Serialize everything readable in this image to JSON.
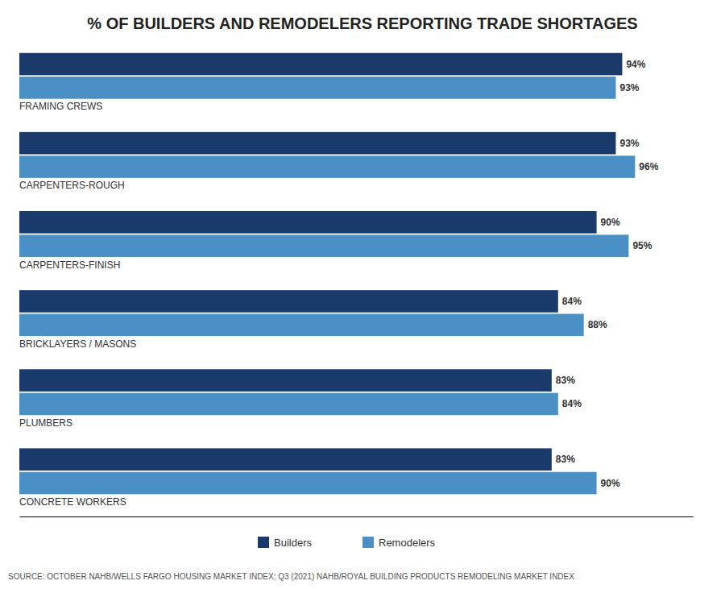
{
  "chart_data": {
    "type": "bar",
    "orientation": "horizontal",
    "title": "% OF BUILDERS AND REMODELERS REPORTING TRADE SHORTAGES",
    "annotations": [
      "SOURCE: OCTOBER NAHB/WELLS FARGO HOUSING MARKET INDEX; Q3 (2021) NAHB/ROYAL BUILDING PRODUCTS REMODELING MARKET INDEX"
    ],
    "categories": [
      "FRAMING CREWS",
      "CARPENTERS-ROUGH",
      "CARPENTERS-FINISH",
      "BRICKLAYERS / MASONS",
      "PLUMBERS",
      "CONCRETE WORKERS"
    ],
    "series": [
      {
        "name": "Builders",
        "color": "#1a3a6b",
        "values": [
          94,
          93,
          90,
          84,
          83,
          83
        ],
        "value_labels": [
          "94%",
          "93%",
          "90%",
          "84%",
          "83%",
          "83%"
        ]
      },
      {
        "name": "Remodelers",
        "color": "#4a90c4",
        "values": [
          93,
          96,
          95,
          88,
          84,
          90
        ],
        "value_labels": [
          "93%",
          "96%",
          "95%",
          "88%",
          "84%",
          "90%"
        ]
      }
    ],
    "xlim": [
      0,
      105
    ],
    "data_labels": true,
    "tick_labels": false,
    "grid": false,
    "legend": "bottom"
  }
}
